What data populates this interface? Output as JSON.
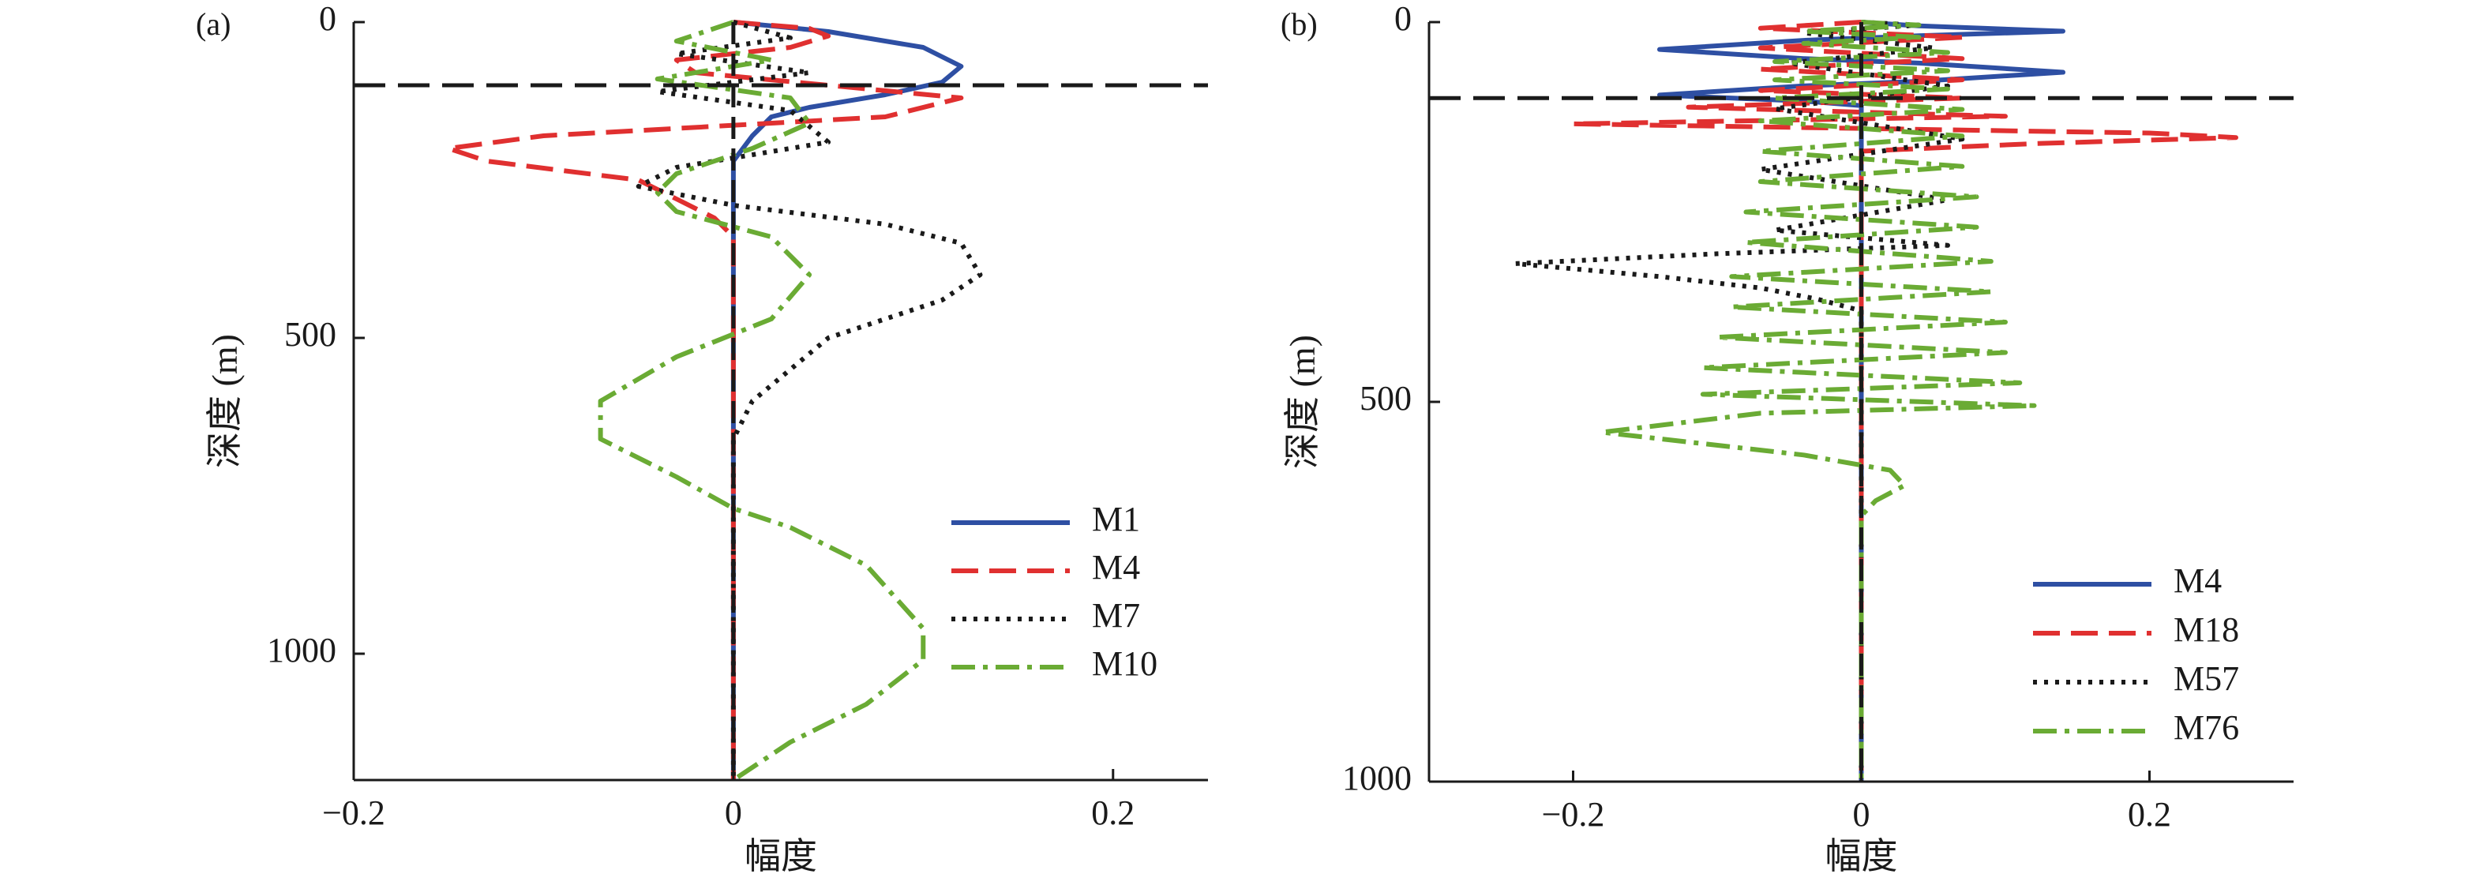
{
  "chart_data": [
    {
      "panel_label": "(a)",
      "type": "line",
      "orientation": "vertical-profile",
      "xlabel": "幅度",
      "ylabel": "深度 (m)",
      "xlim": [
        -0.2,
        0.25
      ],
      "ylim": [
        0,
        1200
      ],
      "y_inverted": true,
      "xticks": [
        {
          "v": -0.2,
          "label": "−0.2"
        },
        {
          "v": 0,
          "label": "0"
        },
        {
          "v": 0.2,
          "label": "0.2"
        }
      ],
      "yticks": [
        {
          "v": 0,
          "label": "0"
        },
        {
          "v": 500,
          "label": "500"
        },
        {
          "v": 1000,
          "label": "1000"
        }
      ],
      "grid": false,
      "legend_position": "lower-right",
      "reference_lines": {
        "horizontal_depth": 100,
        "vertical_x": 0
      },
      "series": [
        {
          "name": "M1",
          "color": "#2e4fa3",
          "style": "solid",
          "points": [
            [
              0,
              0
            ],
            [
              0.05,
              15
            ],
            [
              0.1,
              40
            ],
            [
              0.12,
              70
            ],
            [
              0.11,
              95
            ],
            [
              0.08,
              115
            ],
            [
              0.04,
              135
            ],
            [
              0.02,
              150
            ],
            [
              0.01,
              180
            ],
            [
              0,
              220
            ],
            [
              0,
              1200
            ]
          ]
        },
        {
          "name": "M4",
          "color": "#e03030",
          "style": "dashed",
          "points": [
            [
              0,
              0
            ],
            [
              0.04,
              10
            ],
            [
              0.05,
              22
            ],
            [
              0.03,
              40
            ],
            [
              -0.03,
              60
            ],
            [
              -0.02,
              80
            ],
            [
              0.05,
              100
            ],
            [
              0.12,
              120
            ],
            [
              0.08,
              150
            ],
            [
              -0.1,
              180
            ],
            [
              -0.15,
              200
            ],
            [
              -0.13,
              220
            ],
            [
              -0.05,
              250
            ],
            [
              -0.03,
              280
            ],
            [
              -0.01,
              310
            ],
            [
              0,
              340
            ],
            [
              0,
              1200
            ]
          ]
        },
        {
          "name": "M7",
          "color": "#1a1a1a",
          "style": "dotted",
          "points": [
            [
              0,
              0
            ],
            [
              0.03,
              25
            ],
            [
              -0.03,
              50
            ],
            [
              0.04,
              80
            ],
            [
              -0.04,
              110
            ],
            [
              0.03,
              140
            ],
            [
              0.05,
              190
            ],
            [
              -0.03,
              230
            ],
            [
              -0.05,
              260
            ],
            [
              0,
              290
            ],
            [
              0.08,
              320
            ],
            [
              0.12,
              350
            ],
            [
              0.13,
              400
            ],
            [
              0.11,
              440
            ],
            [
              0.05,
              500
            ],
            [
              0.01,
              600
            ],
            [
              0,
              660
            ],
            [
              0,
              1200
            ]
          ]
        },
        {
          "name": "M10",
          "color": "#6aab34",
          "style": "dashdot",
          "points": [
            [
              0,
              0
            ],
            [
              -0.03,
              30
            ],
            [
              0.02,
              60
            ],
            [
              -0.04,
              90
            ],
            [
              0.03,
              120
            ],
            [
              0.04,
              160
            ],
            [
              0.01,
              200
            ],
            [
              -0.03,
              240
            ],
            [
              -0.04,
              270
            ],
            [
              -0.03,
              300
            ],
            [
              0.02,
              340
            ],
            [
              0.04,
              400
            ],
            [
              0.02,
              470
            ],
            [
              -0.03,
              530
            ],
            [
              -0.07,
              600
            ],
            [
              -0.07,
              660
            ],
            [
              -0.03,
              720
            ],
            [
              0,
              770
            ],
            [
              0.03,
              800
            ],
            [
              0.07,
              860
            ],
            [
              0.1,
              960
            ],
            [
              0.1,
              1010
            ],
            [
              0.07,
              1080
            ],
            [
              0.03,
              1140
            ],
            [
              0,
              1200
            ]
          ]
        }
      ]
    },
    {
      "panel_label": "(b)",
      "type": "line",
      "orientation": "vertical-profile",
      "xlabel": "幅度",
      "ylabel": "深度 (m)",
      "xlim": [
        -0.3,
        0.3
      ],
      "ylim": [
        0,
        1000
      ],
      "y_inverted": true,
      "xticks": [
        {
          "v": -0.2,
          "label": "−0.2"
        },
        {
          "v": 0,
          "label": "0"
        },
        {
          "v": 0.2,
          "label": "0.2"
        }
      ],
      "yticks": [
        {
          "v": 0,
          "label": "0"
        },
        {
          "v": 500,
          "label": "500"
        },
        {
          "v": 1000,
          "label": "1000"
        }
      ],
      "grid": false,
      "legend_position": "lower-right",
      "reference_lines": {
        "horizontal_depth": 100,
        "vertical_x": 0
      },
      "series": [
        {
          "name": "M4",
          "color": "#2e4fa3",
          "style": "solid",
          "points": [
            [
              0,
              0
            ],
            [
              0.04,
              5
            ],
            [
              0.14,
              12
            ],
            [
              0.04,
              18
            ],
            [
              -0.04,
              24
            ],
            [
              -0.14,
              36
            ],
            [
              -0.04,
              48
            ],
            [
              0.04,
              54
            ],
            [
              0.14,
              66
            ],
            [
              0.04,
              78
            ],
            [
              -0.04,
              84
            ],
            [
              -0.14,
              96
            ],
            [
              -0.04,
              104
            ],
            [
              0,
              110
            ],
            [
              0,
              1000
            ]
          ]
        },
        {
          "name": "M18",
          "color": "#e03030",
          "style": "dashed",
          "points": [
            [
              0,
              0
            ],
            [
              -0.07,
              8
            ],
            [
              0.07,
              20
            ],
            [
              -0.07,
              34
            ],
            [
              0.07,
              48
            ],
            [
              -0.07,
              62
            ],
            [
              0.07,
              76
            ],
            [
              -0.07,
              90
            ],
            [
              0.07,
              100
            ],
            [
              -0.12,
              112
            ],
            [
              0.1,
              124
            ],
            [
              -0.2,
              134
            ],
            [
              0.2,
              146
            ],
            [
              0.26,
              152
            ],
            [
              0.12,
              160
            ],
            [
              0,
              170
            ],
            [
              0,
              1000
            ]
          ]
        },
        {
          "name": "M57",
          "color": "#1a1a1a",
          "style": "dotted",
          "points": [
            [
              0,
              0
            ],
            [
              0.04,
              4
            ],
            [
              -0.04,
              14
            ],
            [
              0.05,
              34
            ],
            [
              -0.05,
              54
            ],
            [
              0.06,
              84
            ],
            [
              -0.06,
              114
            ],
            [
              0.07,
              154
            ],
            [
              -0.07,
              194
            ],
            [
              0.06,
              234
            ],
            [
              -0.06,
              274
            ],
            [
              0.06,
              294
            ],
            [
              -0.1,
              305
            ],
            [
              -0.24,
              318
            ],
            [
              -0.14,
              335
            ],
            [
              -0.07,
              350
            ],
            [
              -0.03,
              365
            ],
            [
              0,
              380
            ],
            [
              0,
              1000
            ]
          ]
        },
        {
          "name": "M76",
          "color": "#6aab34",
          "style": "dashdot",
          "points": [
            [
              0,
              0
            ],
            [
              0.04,
              4
            ],
            [
              -0.04,
              12
            ],
            [
              0.04,
              20
            ],
            [
              -0.04,
              28
            ],
            [
              0.06,
              40
            ],
            [
              -0.06,
              52
            ],
            [
              0.06,
              64
            ],
            [
              -0.06,
              76
            ],
            [
              0.06,
              88
            ],
            [
              -0.06,
              100
            ],
            [
              0.07,
              115
            ],
            [
              -0.07,
              130
            ],
            [
              0.07,
              150
            ],
            [
              -0.07,
              170
            ],
            [
              0.07,
              190
            ],
            [
              -0.07,
              210
            ],
            [
              0.08,
              230
            ],
            [
              -0.08,
              250
            ],
            [
              0.08,
              270
            ],
            [
              -0.08,
              290
            ],
            [
              0.09,
              315
            ],
            [
              -0.09,
              335
            ],
            [
              0.09,
              355
            ],
            [
              -0.09,
              375
            ],
            [
              0.1,
              395
            ],
            [
              -0.1,
              415
            ],
            [
              0.1,
              435
            ],
            [
              -0.11,
              455
            ],
            [
              0.11,
              475
            ],
            [
              -0.11,
              490
            ],
            [
              0.12,
              505
            ],
            [
              -0.07,
              515
            ],
            [
              -0.18,
              540
            ],
            [
              -0.11,
              555
            ],
            [
              -0.04,
              570
            ],
            [
              0.02,
              590
            ],
            [
              0.03,
              610
            ],
            [
              0.01,
              630
            ],
            [
              0,
              650
            ],
            [
              0,
              1000
            ]
          ]
        }
      ]
    }
  ]
}
